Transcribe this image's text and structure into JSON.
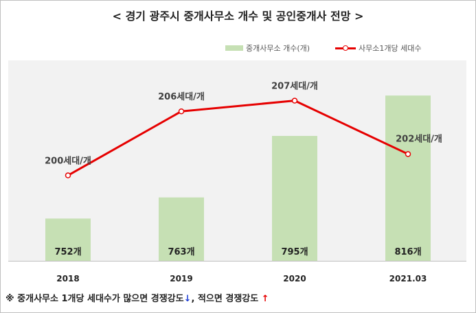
{
  "chart_data": {
    "type": "bar+line",
    "title": "< 경기 광주시 중개사무소 개수 및 공인중개사 전망 >",
    "categories": [
      "2018",
      "2019",
      "2020",
      "2021.03"
    ],
    "series": [
      {
        "name": "중개사무소 개수(개)",
        "type": "bar",
        "values": [
          752,
          763,
          795,
          816
        ],
        "labels": [
          "752개",
          "763개",
          "795개",
          "816개"
        ],
        "color": "#c6e0b4"
      },
      {
        "name": "사무소1개당 세대수",
        "type": "line",
        "values": [
          200,
          206,
          207,
          202
        ],
        "labels": [
          "200세대/개",
          "206세대/개",
          "207세대/개",
          "202세대/개"
        ],
        "color": "#e60000"
      }
    ],
    "bar_axis_range": [
      730,
      830
    ],
    "line_axis_range": [
      192,
      210
    ],
    "legend_position": "top-right",
    "grid": false
  },
  "footnote": {
    "part1": "※ 중개사무소 1개당 세대수가 많으면 경쟁강도",
    "arrow_down": "↓",
    "part2": ", 적으면 경쟁강도",
    "arrow_up": "↑"
  }
}
